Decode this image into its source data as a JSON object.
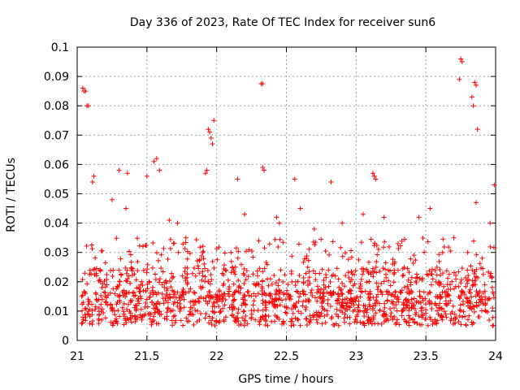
{
  "chart_data": {
    "type": "scatter",
    "title": "Day 336 of 2023, Rate Of TEC Index for receiver sun6",
    "xlabel": "GPS time / hours",
    "ylabel": "ROTI / TECUs",
    "xlim": [
      21,
      24
    ],
    "ylim": [
      0,
      0.1
    ],
    "xticks": [
      "21",
      "21.5",
      "22",
      "22.5",
      "23",
      "23.5",
      "24"
    ],
    "yticks": [
      "0",
      "0.01",
      "0.02",
      "0.03",
      "0.04",
      "0.05",
      "0.06",
      "0.07",
      "0.08",
      "0.09",
      "0.1"
    ],
    "grid": true,
    "marker": "+",
    "color": "#ff0000",
    "series": [
      {
        "points": [
          [
            21.04,
            0.086
          ],
          [
            21.05,
            0.085
          ],
          [
            21.06,
            0.085
          ],
          [
            21.07,
            0.08
          ],
          [
            21.08,
            0.08
          ],
          [
            21.12,
            0.056
          ],
          [
            21.11,
            0.054
          ],
          [
            21.3,
            0.058
          ],
          [
            21.36,
            0.057
          ],
          [
            21.55,
            0.061
          ],
          [
            21.57,
            0.062
          ],
          [
            21.59,
            0.058
          ],
          [
            21.5,
            0.056
          ],
          [
            21.94,
            0.072
          ],
          [
            21.95,
            0.071
          ],
          [
            21.96,
            0.069
          ],
          [
            21.97,
            0.067
          ],
          [
            21.98,
            0.075
          ],
          [
            21.92,
            0.057
          ],
          [
            21.93,
            0.058
          ],
          [
            22.32,
            0.0875
          ],
          [
            22.33,
            0.0875
          ],
          [
            22.33,
            0.059
          ],
          [
            22.34,
            0.058
          ],
          [
            22.15,
            0.055
          ],
          [
            22.56,
            0.055
          ],
          [
            22.82,
            0.054
          ],
          [
            23.12,
            0.057
          ],
          [
            23.13,
            0.056
          ],
          [
            23.14,
            0.055
          ],
          [
            23.53,
            0.045
          ],
          [
            23.75,
            0.096
          ],
          [
            23.76,
            0.095
          ],
          [
            23.74,
            0.089
          ],
          [
            23.85,
            0.088
          ],
          [
            23.86,
            0.087
          ],
          [
            23.84,
            0.08
          ],
          [
            23.83,
            0.083
          ],
          [
            23.87,
            0.072
          ],
          [
            23.86,
            0.047
          ],
          [
            23.99,
            0.053
          ],
          [
            23.96,
            0.04
          ],
          [
            22.43,
            0.042
          ],
          [
            22.45,
            0.04
          ],
          [
            21.35,
            0.045
          ],
          [
            21.25,
            0.048
          ],
          [
            21.66,
            0.041
          ],
          [
            21.72,
            0.04
          ],
          [
            21.9,
            0.03
          ],
          [
            22.2,
            0.043
          ],
          [
            22.6,
            0.045
          ],
          [
            22.7,
            0.038
          ],
          [
            22.9,
            0.04
          ],
          [
            23.05,
            0.043
          ],
          [
            23.2,
            0.042
          ],
          [
            23.3,
            0.033
          ],
          [
            23.45,
            0.042
          ],
          [
            23.62,
            0.03
          ],
          [
            23.7,
            0.035
          ],
          [
            23.8,
            0.03
          ]
        ]
      }
    ]
  }
}
